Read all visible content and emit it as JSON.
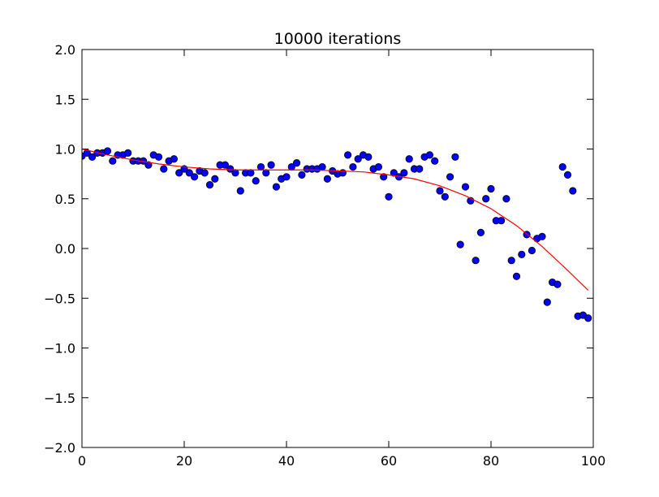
{
  "chart_data": {
    "type": "scatter",
    "title": "10000 iterations",
    "xlabel": "",
    "ylabel": "",
    "xlim": [
      0,
      100
    ],
    "ylim": [
      -2.0,
      2.0
    ],
    "xticks": [
      "0",
      "20",
      "40",
      "60",
      "80",
      "100"
    ],
    "yticks": [
      "−2.0",
      "−1.5",
      "−1.0",
      "−0.5",
      "0.0",
      "0.5",
      "1.0",
      "1.5",
      "2.0"
    ],
    "grid": false,
    "series": [
      {
        "kind": "points",
        "color": "#0000ff",
        "x": [
          0,
          1,
          2,
          3,
          4,
          5,
          6,
          7,
          8,
          9,
          10,
          11,
          12,
          13,
          14,
          15,
          16,
          17,
          18,
          19,
          20,
          21,
          22,
          23,
          24,
          25,
          26,
          27,
          28,
          29,
          30,
          31,
          32,
          33,
          34,
          35,
          36,
          37,
          38,
          39,
          40,
          41,
          42,
          43,
          44,
          45,
          46,
          47,
          48,
          49,
          50,
          51,
          52,
          53,
          54,
          55,
          56,
          57,
          58,
          59,
          60,
          61,
          62,
          63,
          64,
          65,
          66,
          67,
          68,
          69,
          70,
          71,
          72,
          73,
          74,
          75,
          76,
          77,
          78,
          79,
          80,
          81,
          82,
          83,
          84,
          85,
          86,
          87,
          88,
          89,
          90,
          91,
          92,
          93,
          94,
          95,
          96,
          97,
          98,
          99
        ],
        "y": [
          0.93,
          0.96,
          0.92,
          0.96,
          0.96,
          0.98,
          0.88,
          0.94,
          0.94,
          0.96,
          0.88,
          0.88,
          0.88,
          0.84,
          0.94,
          0.92,
          0.8,
          0.88,
          0.9,
          0.76,
          0.8,
          0.76,
          0.72,
          0.78,
          0.76,
          0.64,
          0.7,
          0.84,
          0.84,
          0.8,
          0.76,
          0.58,
          0.76,
          0.76,
          0.68,
          0.82,
          0.76,
          0.84,
          0.62,
          0.7,
          0.72,
          0.82,
          0.86,
          0.74,
          0.8,
          0.8,
          0.8,
          0.82,
          0.7,
          0.78,
          0.75,
          0.76,
          0.94,
          0.82,
          0.9,
          0.94,
          0.92,
          0.8,
          0.82,
          0.72,
          0.52,
          0.76,
          0.72,
          0.76,
          0.9,
          0.8,
          0.8,
          0.92,
          0.94,
          0.88,
          0.58,
          0.52,
          0.72,
          0.92,
          0.04,
          0.62,
          0.48,
          -0.12,
          0.16,
          0.5,
          0.6,
          0.28,
          0.28,
          0.5,
          -0.12,
          -0.28,
          -0.06,
          0.14,
          -0.02,
          0.1,
          0.12,
          -0.54,
          -0.34,
          -0.36,
          0.82,
          0.74,
          0.58,
          -0.68,
          -0.67,
          -0.7
        ]
      },
      {
        "kind": "line",
        "color": "#ff0000",
        "x": [
          0,
          5,
          10,
          15,
          20,
          25,
          30,
          35,
          40,
          45,
          50,
          55,
          60,
          65,
          70,
          75,
          80,
          85,
          90,
          95,
          99
        ],
        "y": [
          1.0,
          0.94,
          0.89,
          0.85,
          0.82,
          0.8,
          0.79,
          0.79,
          0.79,
          0.79,
          0.78,
          0.77,
          0.74,
          0.7,
          0.63,
          0.53,
          0.4,
          0.23,
          0.02,
          -0.22,
          -0.42
        ]
      }
    ]
  }
}
